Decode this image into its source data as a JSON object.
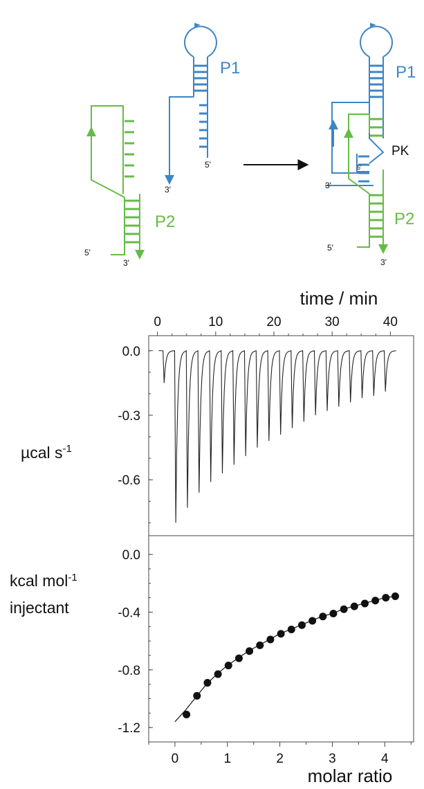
{
  "colors": {
    "p1": "#3d85c6",
    "p2": "#66bb46",
    "ink": "#111111",
    "axis": "#444444"
  },
  "diagram": {
    "left": {
      "p1_label": "P1",
      "p2_label": "P2",
      "p1_5prime": "5'",
      "p1_3prime": "3'",
      "p2_5prime": "5'",
      "p2_3prime": "3'"
    },
    "right": {
      "p1_label": "P1",
      "p2_label": "P2",
      "pk_label": "PK",
      "p1_5prime": "5'",
      "p1_3prime": "3'",
      "p2_5prime": "5'",
      "p2_3prime": "3'"
    }
  },
  "chart_data": [
    {
      "type": "line",
      "panel": "raw-thermogram",
      "xlabel": "time / min",
      "ylabel": "µcal s-1",
      "xlim": [
        -1.5,
        44
      ],
      "ylim": [
        -0.86,
        0.07
      ],
      "x_ticks": [
        0,
        10,
        20,
        30,
        40
      ],
      "y_ticks": [
        0.0,
        -0.3,
        -0.6
      ],
      "y_tick_labels": [
        "0.0",
        "-0.3",
        "-0.6"
      ],
      "injection_times": [
        1.0,
        3.0,
        5.0,
        7.0,
        9.0,
        11.0,
        13.0,
        15.0,
        17.0,
        19.0,
        21.0,
        23.0,
        25.0,
        27.0,
        29.0,
        31.0,
        33.0,
        35.0,
        37.0,
        39.0
      ],
      "peak_values": [
        -0.15,
        -0.8,
        -0.73,
        -0.66,
        -0.61,
        -0.57,
        -0.53,
        -0.49,
        -0.45,
        -0.42,
        -0.39,
        -0.36,
        -0.33,
        -0.3,
        -0.28,
        -0.26,
        -0.24,
        -0.22,
        -0.21,
        -0.19
      ],
      "baseline": 0.0
    },
    {
      "type": "scatter",
      "panel": "integrated-heats",
      "xlabel": "molar ratio",
      "ylabel": "kcal mol-1 injectant",
      "xlim": [
        -0.5,
        4.55
      ],
      "ylim": [
        -1.3,
        0.13
      ],
      "x_ticks": [
        0,
        1,
        2,
        3,
        4
      ],
      "y_ticks": [
        0.0,
        -0.4,
        -0.8,
        -1.2
      ],
      "y_tick_labels": [
        "0.0",
        "-0.4",
        "-0.8",
        "-1.2"
      ],
      "points": {
        "x": [
          0.22,
          0.42,
          0.62,
          0.82,
          1.02,
          1.22,
          1.42,
          1.62,
          1.82,
          2.02,
          2.22,
          2.42,
          2.62,
          2.82,
          3.02,
          3.22,
          3.42,
          3.62,
          3.82,
          4.02,
          4.2
        ],
        "y": [
          -1.11,
          -0.98,
          -0.89,
          -0.83,
          -0.77,
          -0.72,
          -0.67,
          -0.63,
          -0.59,
          -0.55,
          -0.52,
          -0.49,
          -0.46,
          -0.43,
          -0.41,
          -0.38,
          -0.36,
          -0.34,
          -0.32,
          -0.3,
          -0.29
        ]
      },
      "fit": {
        "x": [
          0.0,
          0.2,
          0.4,
          0.6,
          0.8,
          1.0,
          1.2,
          1.4,
          1.6,
          1.8,
          2.0,
          2.2,
          2.4,
          2.6,
          2.8,
          3.0,
          3.2,
          3.4,
          3.6,
          3.8,
          4.0,
          4.2
        ],
        "y": [
          -1.16,
          -1.08,
          -0.99,
          -0.9,
          -0.83,
          -0.77,
          -0.72,
          -0.67,
          -0.63,
          -0.59,
          -0.55,
          -0.52,
          -0.49,
          -0.46,
          -0.43,
          -0.41,
          -0.38,
          -0.36,
          -0.34,
          -0.32,
          -0.3,
          -0.29
        ]
      }
    }
  ]
}
